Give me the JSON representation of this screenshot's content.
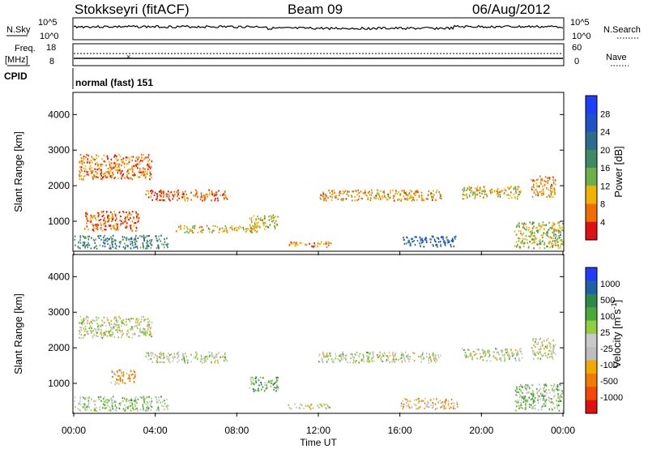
{
  "header": {
    "station": "Stokkseyri (fitACF)",
    "beam": "Beam 09",
    "date": "06/Aug/2012"
  },
  "noise_panel": {
    "left_label": "N.Sky",
    "right_label": "N.Search",
    "left_ticks": [
      "10^5",
      "10^0"
    ],
    "right_ticks": [
      "10^5",
      "10^0"
    ]
  },
  "freq_panel": {
    "left_label_1": "Freq.",
    "left_label_2": "[MHz]",
    "left_ticks": [
      "18",
      "8"
    ],
    "right_label": "Nave",
    "right_ticks": [
      "60",
      "0"
    ]
  },
  "cpid": {
    "label": "CPID",
    "value": "normal (fast) 151"
  },
  "colors": {
    "power_scale": [
      "#1f3dff",
      "#1f52c8",
      "#2e6b8c",
      "#3e8a63",
      "#6db04a",
      "#f2b200",
      "#f26c00",
      "#e01010"
    ],
    "velocity_scale": [
      "#1f3dff",
      "#2060a8",
      "#2e8a4a",
      "#4ca83a",
      "#8fcf40",
      "#c8c8c8",
      "#bdbdbd",
      "#f2a800",
      "#f27a00",
      "#f24a00",
      "#e01010"
    ]
  },
  "chart_data": [
    {
      "type": "heatmap",
      "title": "",
      "ylabel": "Slant Range [km]",
      "xlabel": "",
      "xlim": [
        "00:00",
        "24:00"
      ],
      "ylim": [
        180,
        4600
      ],
      "y_ticks": [
        "1000",
        "2000",
        "3000",
        "4000"
      ],
      "colorbar": {
        "label": "Power [dB]",
        "ticks": [
          "4",
          "8",
          "12",
          "16",
          "20",
          "24",
          "28"
        ],
        "range": [
          0,
          30
        ]
      },
      "regions": [
        {
          "t0": 0.0,
          "t1": 4.6,
          "r0": 250,
          "r1": 620,
          "value": 18
        },
        {
          "t0": 0.2,
          "t1": 3.8,
          "r0": 2200,
          "r1": 2900,
          "value": 6
        },
        {
          "t0": 0.5,
          "t1": 3.2,
          "r0": 750,
          "r1": 1300,
          "value": 5
        },
        {
          "t0": 3.5,
          "t1": 7.5,
          "r0": 1600,
          "r1": 1900,
          "value": 4
        },
        {
          "t0": 5.0,
          "t1": 9.0,
          "r0": 700,
          "r1": 900,
          "value": 10
        },
        {
          "t0": 8.6,
          "t1": 10.0,
          "r0": 800,
          "r1": 1200,
          "value": 12
        },
        {
          "t0": 10.5,
          "t1": 12.6,
          "r0": 300,
          "r1": 450,
          "value": 6
        },
        {
          "t0": 12.0,
          "t1": 18.0,
          "r0": 1600,
          "r1": 1900,
          "value": 8
        },
        {
          "t0": 16.0,
          "t1": 18.8,
          "r0": 300,
          "r1": 600,
          "value": 22
        },
        {
          "t0": 19.0,
          "t1": 22.0,
          "r0": 1650,
          "r1": 2000,
          "value": 10
        },
        {
          "t0": 21.6,
          "t1": 24.0,
          "r0": 250,
          "r1": 1000,
          "value": 12
        },
        {
          "t0": 22.4,
          "t1": 23.6,
          "r0": 1700,
          "r1": 2300,
          "value": 8
        }
      ]
    },
    {
      "type": "heatmap",
      "title": "",
      "ylabel": "Slant Range [km]",
      "xlabel": "Time UT",
      "xlim": [
        "00:00",
        "24:00"
      ],
      "ylim": [
        180,
        4600
      ],
      "x_ticks": [
        "00:00",
        "04:00",
        "08:00",
        "12:00",
        "16:00",
        "20:00",
        "00:00"
      ],
      "y_ticks": [
        "1000",
        "2000",
        "3000",
        "4000"
      ],
      "colorbar": {
        "label": "Velocity [m s^-1]",
        "ticks": [
          "1000",
          "500",
          "100",
          "25",
          "-25",
          "-100",
          "-500",
          "-1000"
        ],
        "range": [
          -1200,
          1200
        ]
      },
      "regions": [
        {
          "t0": 0.0,
          "t1": 4.6,
          "r0": 250,
          "r1": 650,
          "value": 150
        },
        {
          "t0": 0.2,
          "t1": 3.8,
          "r0": 2300,
          "r1": 2900,
          "value": 0
        },
        {
          "t0": 1.8,
          "t1": 3.0,
          "r0": 1000,
          "r1": 1400,
          "value": -400
        },
        {
          "t0": 3.5,
          "t1": 7.5,
          "r0": 1600,
          "r1": 1900,
          "value": 0
        },
        {
          "t0": 8.6,
          "t1": 10.0,
          "r0": 800,
          "r1": 1200,
          "value": 400
        },
        {
          "t0": 10.5,
          "t1": 12.6,
          "r0": 300,
          "r1": 450,
          "value": -80
        },
        {
          "t0": 12.0,
          "t1": 18.0,
          "r0": 1600,
          "r1": 1900,
          "value": 0
        },
        {
          "t0": 16.0,
          "t1": 18.8,
          "r0": 300,
          "r1": 600,
          "value": -300
        },
        {
          "t0": 19.0,
          "t1": 22.0,
          "r0": 1650,
          "r1": 2000,
          "value": 0
        },
        {
          "t0": 21.6,
          "t1": 24.0,
          "r0": 250,
          "r1": 1000,
          "value": 200
        },
        {
          "t0": 22.4,
          "t1": 23.6,
          "r0": 1700,
          "r1": 2300,
          "value": 0
        }
      ]
    }
  ]
}
